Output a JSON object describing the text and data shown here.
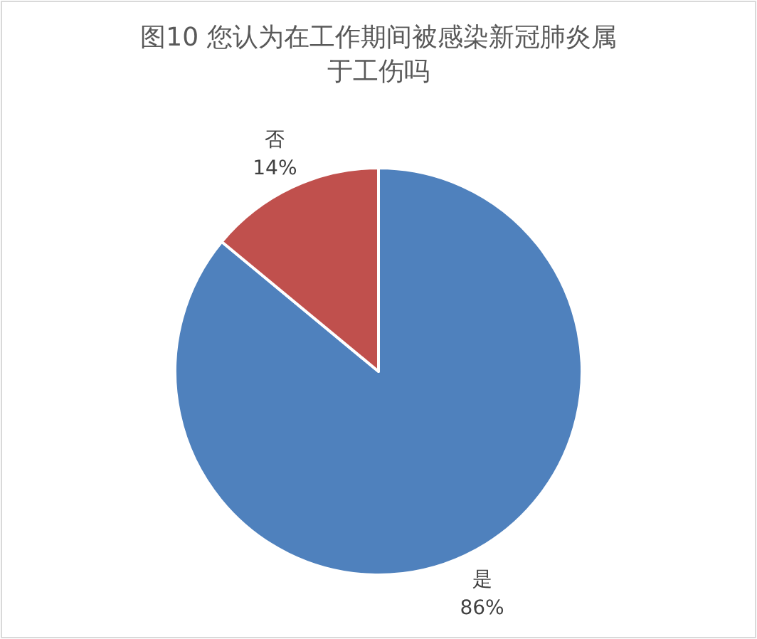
{
  "chart_data": {
    "type": "pie",
    "title": "图10 您认为在工作期间被感染新冠肺炎属于工伤吗",
    "categories": [
      "是",
      "否"
    ],
    "values": [
      86,
      14
    ],
    "colors": [
      "#4f81bd",
      "#c0504d"
    ],
    "value_labels": [
      "86%",
      "14%"
    ]
  }
}
